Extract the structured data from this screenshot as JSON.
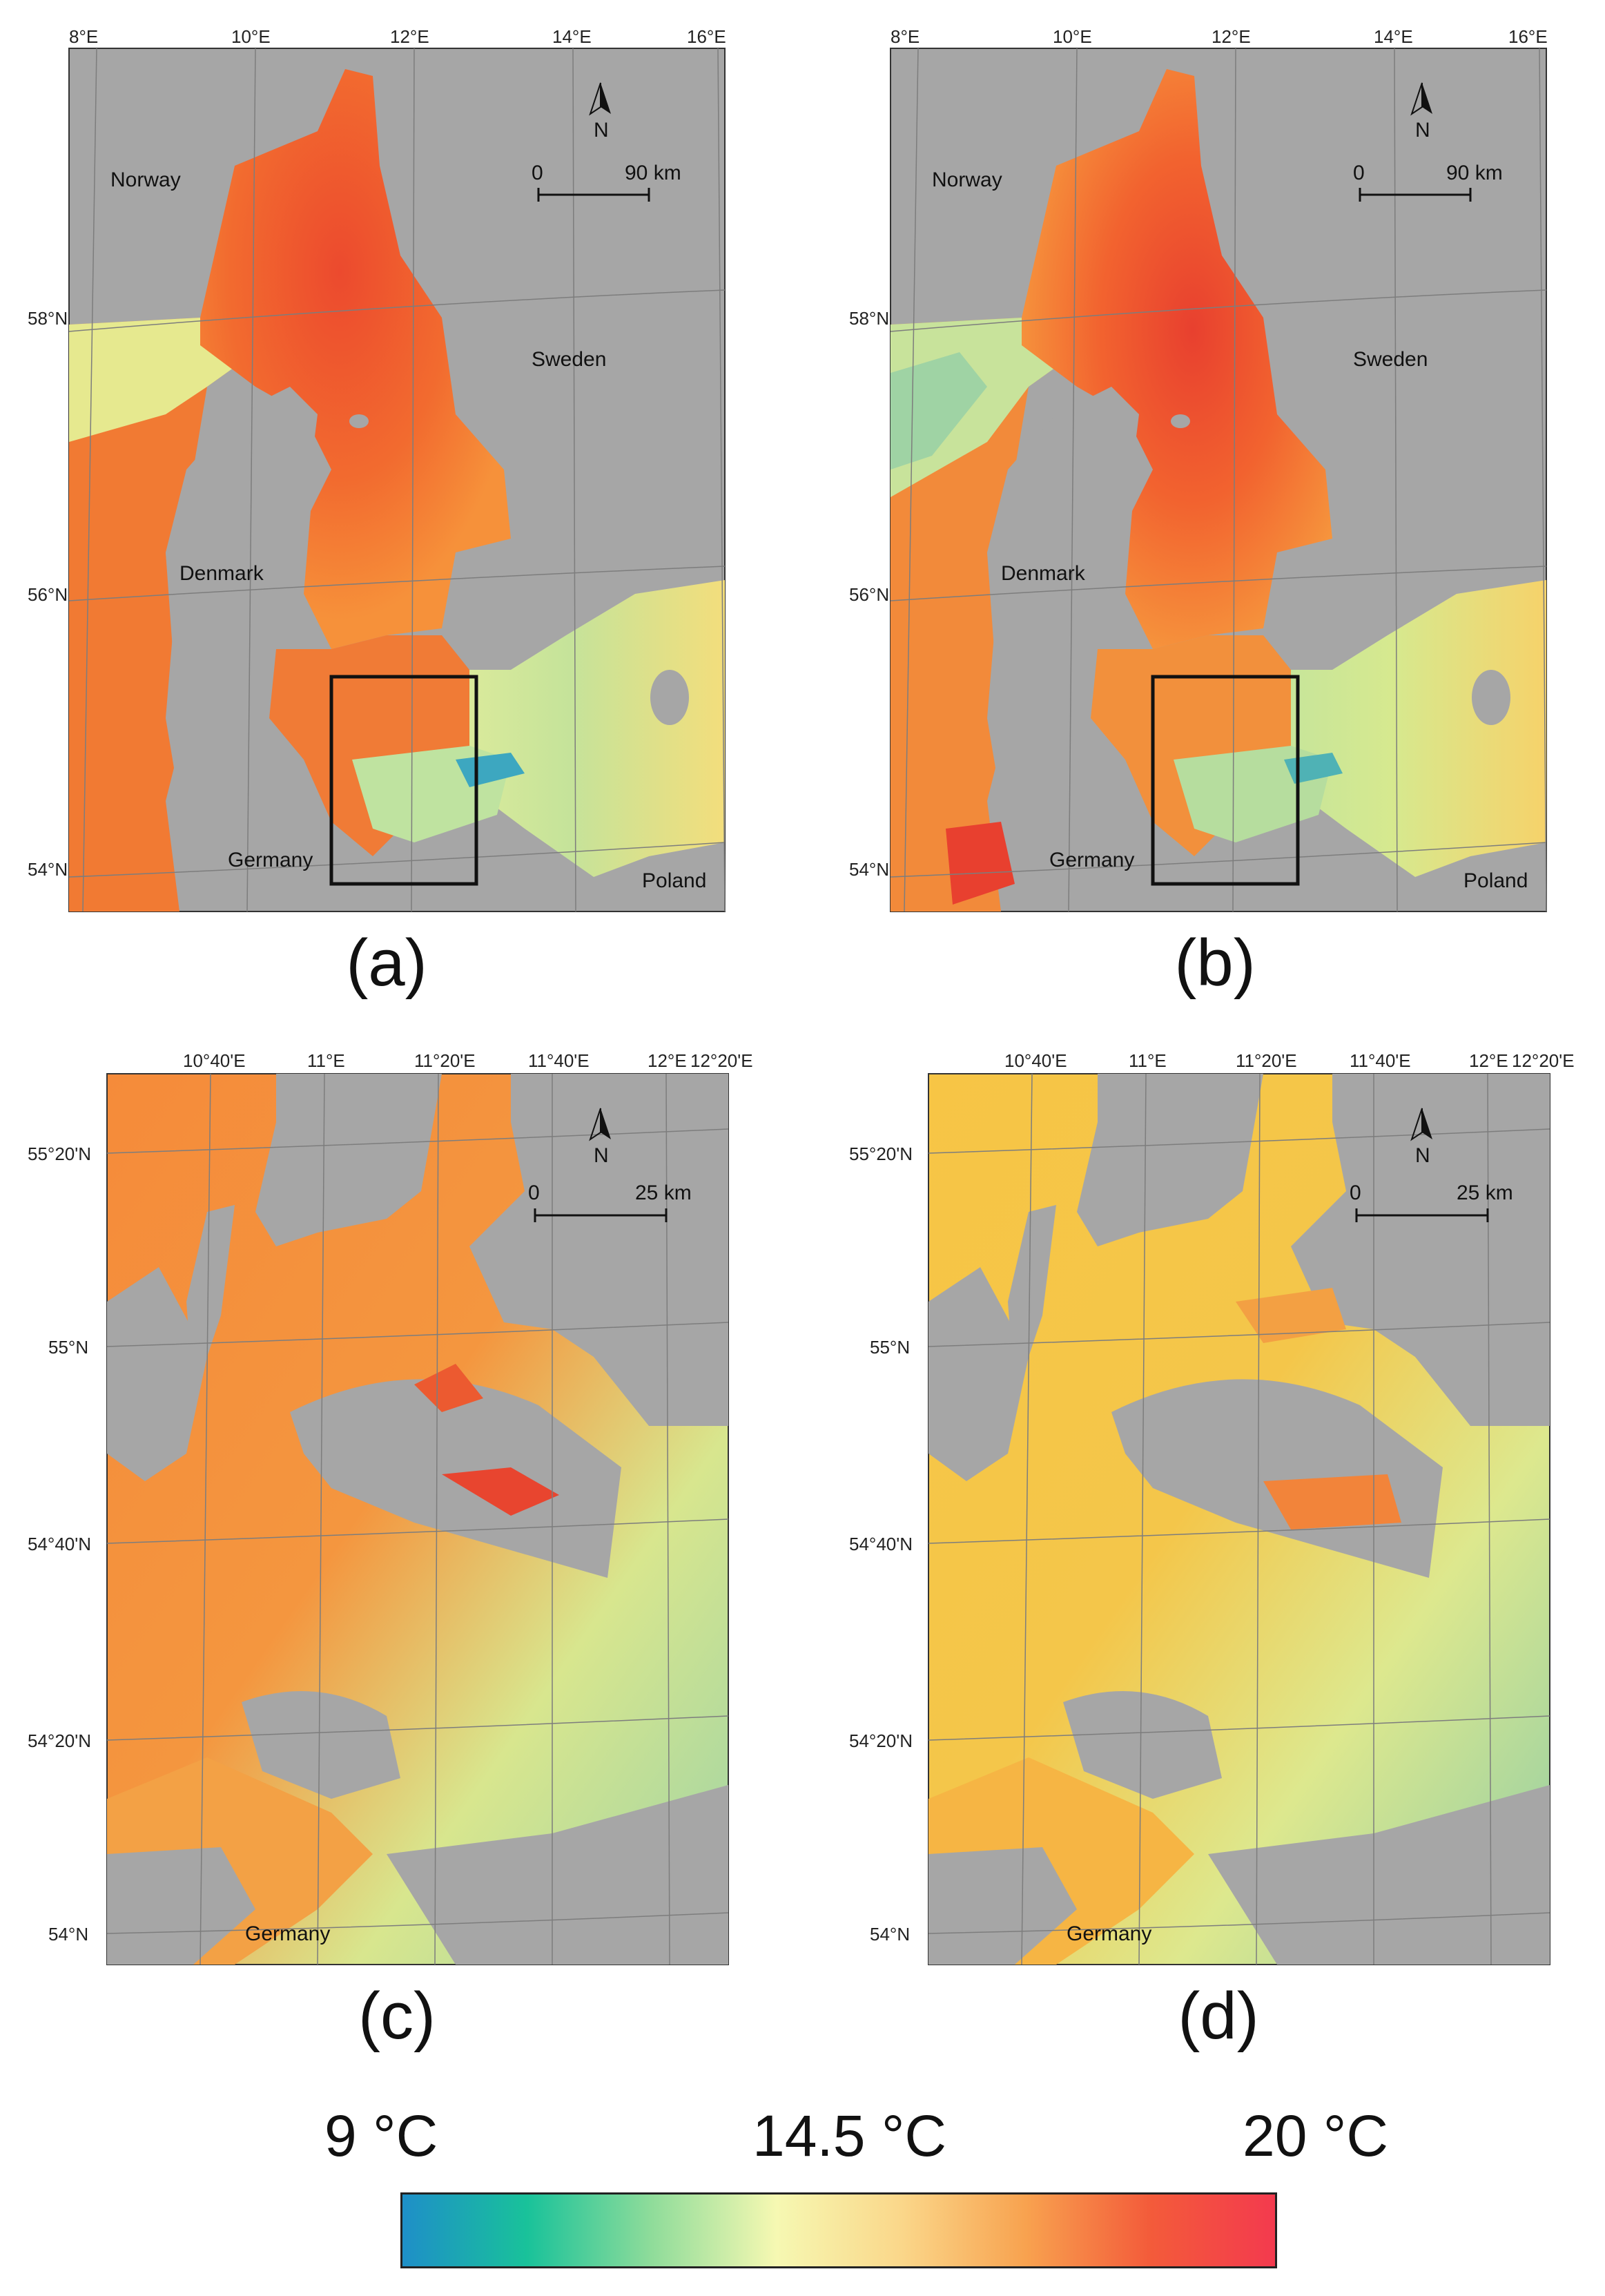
{
  "panels": [
    {
      "id": "a",
      "label": "(a)",
      "top_ticks": [
        "8°E",
        "10°E",
        "12°E",
        "14°E",
        "16°E"
      ],
      "left_ticks": [
        "58°N",
        "56°N",
        "54°N"
      ],
      "countries": [
        "Norway",
        "Sweden",
        "Denmark",
        "Germany",
        "Poland"
      ],
      "scale": {
        "start": "0",
        "end": "90 km"
      },
      "north": "N",
      "inset_box": true
    },
    {
      "id": "b",
      "label": "(b)",
      "top_ticks": [
        "8°E",
        "10°E",
        "12°E",
        "14°E",
        "16°E"
      ],
      "left_ticks": [
        "58°N",
        "56°N",
        "54°N"
      ],
      "countries": [
        "Norway",
        "Sweden",
        "Denmark",
        "Germany",
        "Poland"
      ],
      "scale": {
        "start": "0",
        "end": "90 km"
      },
      "north": "N",
      "inset_box": true
    },
    {
      "id": "c",
      "label": "(c)",
      "top_ticks": [
        "10°40'E",
        "11°E",
        "11°20'E",
        "11°40'E",
        "12°E",
        "12°20'E"
      ],
      "left_ticks": [
        "55°20'N",
        "55°N",
        "54°40'N",
        "54°20'N",
        "54°N"
      ],
      "countries": [
        "Germany"
      ],
      "scale": {
        "start": "0",
        "end": "25 km"
      },
      "north": "N",
      "inset_box": false
    },
    {
      "id": "d",
      "label": "(d)",
      "top_ticks": [
        "10°40'E",
        "11°E",
        "11°20'E",
        "11°40'E",
        "12°E",
        "12°20'E"
      ],
      "left_ticks": [
        "55°20'N",
        "55°N",
        "54°40'N",
        "54°20'N",
        "54°N"
      ],
      "countries": [
        "Germany"
      ],
      "scale": {
        "start": "0",
        "end": "25 km"
      },
      "north": "N",
      "inset_box": false
    }
  ],
  "legend": {
    "min_label": "9 °C",
    "mid_label": "14.5 °C",
    "max_label": "20 °C",
    "gradient_colors": [
      "#1e8fc8",
      "#19c29a",
      "#8fdc9a",
      "#f6f8b2",
      "#fad78a",
      "#f8a24f",
      "#f35b3a",
      "#f33a4e"
    ]
  },
  "colors": {
    "land": "#a6a6a6",
    "sea_warm": "#f26b2f",
    "sea_hot": "#e8402f",
    "sea_mid": "#f6c24a",
    "sea_cool": "#cfe38a",
    "sea_cold": "#6cc0a4"
  }
}
